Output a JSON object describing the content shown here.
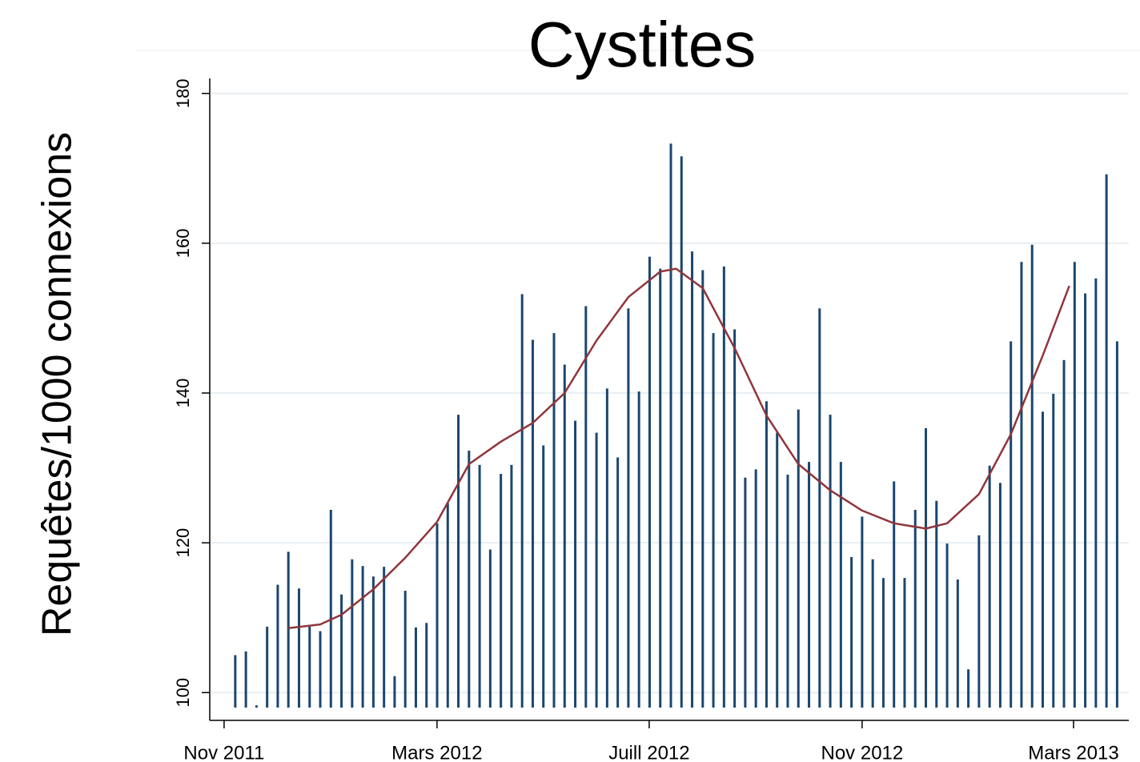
{
  "chart_data": {
    "type": "bar",
    "title": "Cystites",
    "ylabel": "Requêtes/1000 connexions",
    "ylim": [
      98,
      182
    ],
    "yticks": [
      100,
      120,
      140,
      160,
      180
    ],
    "grid": true,
    "xlim": [
      -2.4,
      84.1
    ],
    "xticks": [
      {
        "value": -1.05,
        "label": "Nov 2011"
      },
      {
        "value": 18.99,
        "label": "Mars 2012"
      },
      {
        "value": 38.96,
        "label": "Juill 2012"
      },
      {
        "value": 59.0,
        "label": "Nov 2012"
      },
      {
        "value": 78.9,
        "label": "Mars 2013"
      }
    ],
    "series": [
      {
        "type": "bar",
        "color": "#1a476f",
        "x": [
          0,
          1,
          2,
          3,
          4,
          5,
          6,
          7,
          8,
          9,
          10,
          11,
          12,
          13,
          14,
          15,
          16,
          17,
          18,
          19,
          20,
          21,
          22,
          23,
          24,
          25,
          26,
          27,
          28,
          29,
          30,
          31,
          32,
          33,
          34,
          35,
          36,
          37,
          38,
          39,
          40,
          41,
          42,
          43,
          44,
          45,
          46,
          47,
          48,
          49,
          50,
          51,
          52,
          53,
          54,
          55,
          56,
          57,
          58,
          59,
          60,
          61,
          62,
          63,
          64,
          65,
          66,
          67,
          68,
          69,
          70,
          71,
          72,
          73,
          74,
          75,
          76,
          77,
          78,
          79,
          80,
          81,
          82,
          83
        ],
        "values": [
          105,
          105.5,
          98.3,
          108.8,
          114.4,
          118.8,
          113.9,
          108.8,
          108.2,
          124.4,
          113.1,
          117.8,
          116.9,
          115.5,
          116.8,
          102.2,
          113.6,
          108.7,
          109.3,
          122.6,
          125.3,
          137.1,
          132.3,
          130.4,
          119.1,
          129.2,
          130.4,
          153.2,
          147.1,
          133,
          148,
          143.8,
          136.3,
          151.6,
          134.7,
          140.6,
          131.4,
          151.3,
          140.2,
          158.2,
          156.6,
          173.3,
          171.6,
          158.9,
          156.4,
          148,
          156.9,
          148.5,
          128.7,
          129.8,
          138.9,
          134.7,
          129.1,
          137.8,
          130.8,
          151.3,
          137.1,
          130.8,
          118.1,
          123.5,
          117.8,
          115.3,
          128.2,
          115.3,
          124.4,
          135.3,
          125.6,
          119.9,
          115.1,
          103.1,
          121,
          130.3,
          128,
          146.9,
          157.5,
          159.8,
          137.5,
          139.9,
          144.4,
          157.5,
          153.3,
          155.3,
          169.2,
          146.9
        ]
      },
      {
        "type": "line",
        "color": "#90353b",
        "x": [
          5,
          8,
          10,
          13,
          16,
          19,
          22,
          25,
          28,
          31,
          34,
          37,
          40,
          41.5,
          44,
          47,
          50,
          53,
          56,
          59,
          62,
          65,
          67,
          70,
          73,
          76,
          78.5
        ],
        "values": [
          108.6,
          109.1,
          110.4,
          113.8,
          118,
          122.8,
          130.5,
          133.5,
          136,
          140,
          147,
          152.8,
          156.2,
          156.6,
          154,
          146,
          137,
          130.5,
          127,
          124.3,
          122.6,
          121.9,
          122.6,
          126.5,
          134.5,
          145,
          154.3
        ]
      }
    ]
  }
}
